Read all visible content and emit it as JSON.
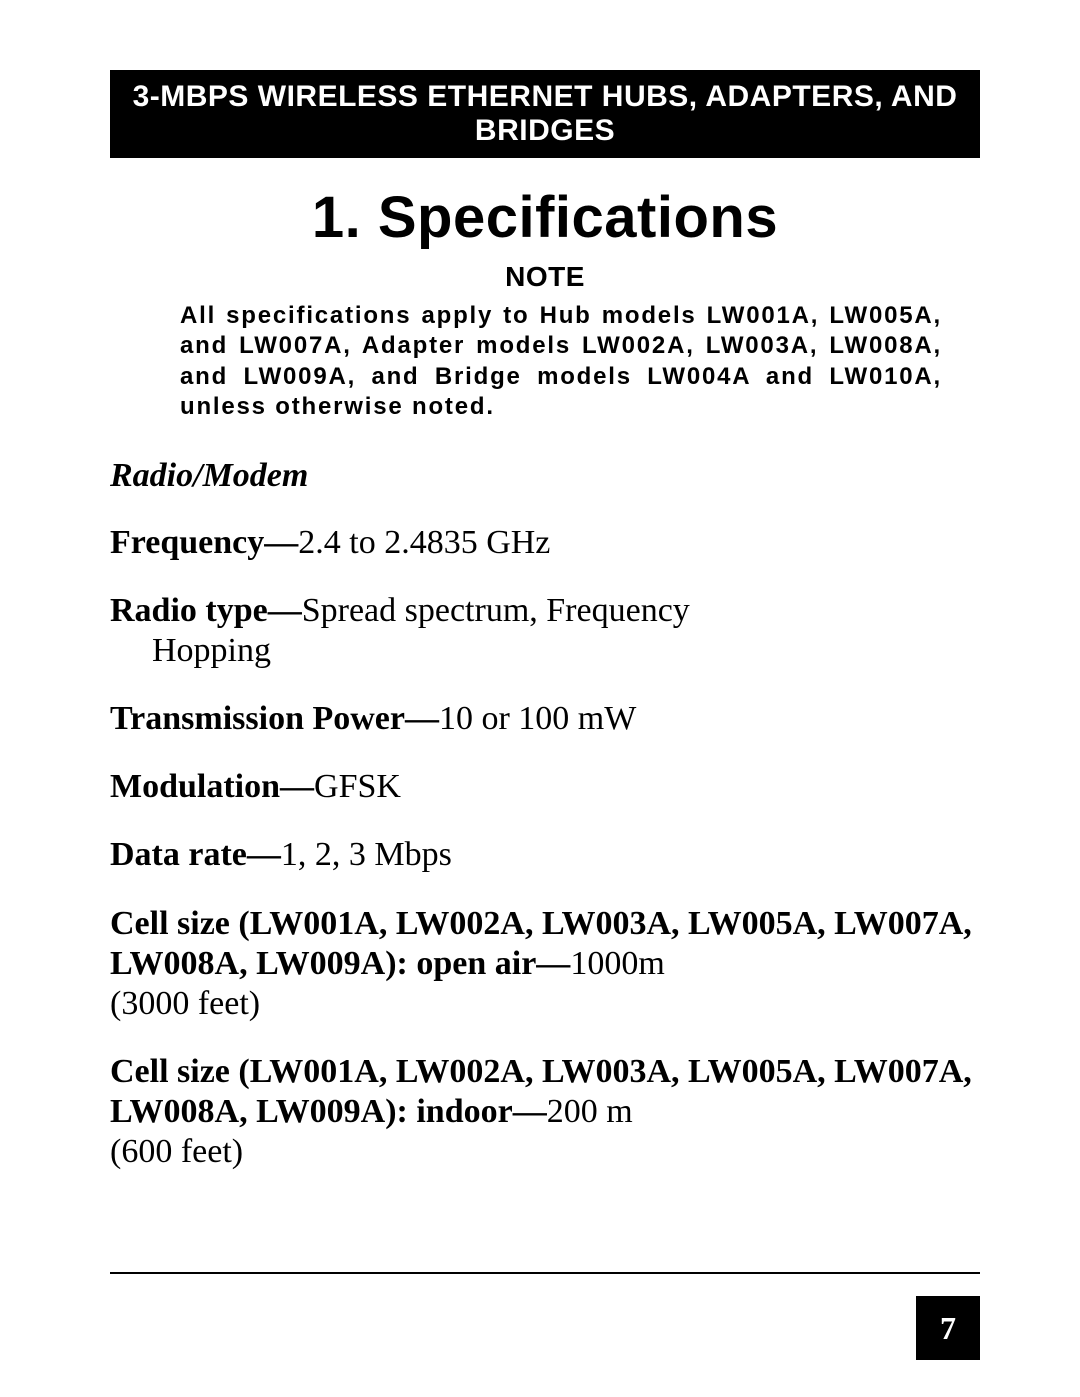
{
  "header_bar": "3-MBPS WIRELESS ETHERNET HUBS, ADAPTERS, AND BRIDGES",
  "chapter_title": "1.  Specifications",
  "note": {
    "label": "NOTE",
    "body": "All specifications apply to Hub models LW001A, LW005A, and LW007A, Adapter models LW002A, LW003A, LW008A, and LW009A, and Bridge models LW004A and LW010A, unless otherwise noted."
  },
  "section_heading": "Radio/Modem",
  "specs": {
    "frequency": {
      "label": "Frequency—",
      "value": "2.4 to 2.4835 GHz"
    },
    "radio_type": {
      "label": "Radio type—",
      "value": "Spread spectrum, Frequency",
      "cont": "Hopping"
    },
    "tx_power": {
      "label": "Transmission Power—",
      "value": "10 or 100 mW"
    },
    "modulation": {
      "label": "Modulation—",
      "value": "GFSK"
    },
    "data_rate": {
      "label": "Data rate—",
      "value": "1, 2, 3 Mbps"
    },
    "cell_open": {
      "label": "Cell size (LW001A, LW002A, LW003A, LW005A, LW007A, LW008A, LW009A):  open air—",
      "value": "1000m",
      "cont": "(3000 feet)"
    },
    "cell_indoor": {
      "label": "Cell size (LW001A, LW002A, LW003A, LW005A, LW007A, LW008A, LW009A):  indoor—",
      "value": "200 m",
      "cont": "(600 feet)"
    }
  },
  "page_number": "7",
  "colors": {
    "background": "#ffffff",
    "text": "#000000",
    "bar_bg": "#000000",
    "bar_text": "#ffffff"
  }
}
